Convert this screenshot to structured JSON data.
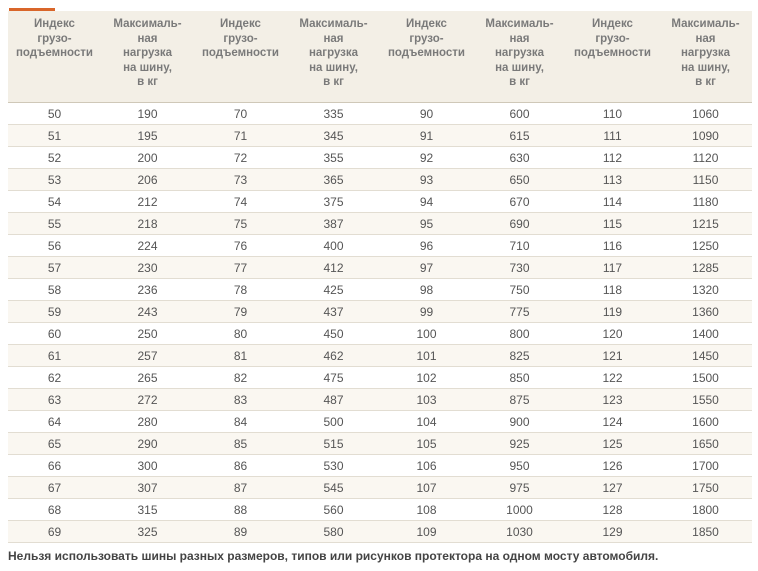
{
  "table": {
    "header": [
      "Индекс\nгрузо-\nподъемности",
      "Максималь-\nная\nнагрузка\nна шину,\nв кг",
      "Индекс\nгрузо-\nподъемности",
      "Максималь-\nная\nнагрузка\nна шину,\nв кг",
      "Индекс\nгрузо-\nподъемности",
      "Максималь-\nная\nнагрузка\nна шину,\nв кг",
      "Индекс\nгрузо-\nподъемности",
      "Максималь-\nная\nнагрузка\nна шину,\nв кг"
    ],
    "rows": [
      [
        50,
        190,
        70,
        335,
        90,
        600,
        110,
        1060
      ],
      [
        51,
        195,
        71,
        345,
        91,
        615,
        111,
        1090
      ],
      [
        52,
        200,
        72,
        355,
        92,
        630,
        112,
        1120
      ],
      [
        53,
        206,
        73,
        365,
        93,
        650,
        113,
        1150
      ],
      [
        54,
        212,
        74,
        375,
        94,
        670,
        114,
        1180
      ],
      [
        55,
        218,
        75,
        387,
        95,
        690,
        115,
        1215
      ],
      [
        56,
        224,
        76,
        400,
        96,
        710,
        116,
        1250
      ],
      [
        57,
        230,
        77,
        412,
        97,
        730,
        117,
        1285
      ],
      [
        58,
        236,
        78,
        425,
        98,
        750,
        118,
        1320
      ],
      [
        59,
        243,
        79,
        437,
        99,
        775,
        119,
        1360
      ],
      [
        60,
        250,
        80,
        450,
        100,
        800,
        120,
        1400
      ],
      [
        61,
        257,
        81,
        462,
        101,
        825,
        121,
        1450
      ],
      [
        62,
        265,
        82,
        475,
        102,
        850,
        122,
        1500
      ],
      [
        63,
        272,
        83,
        487,
        103,
        875,
        123,
        1550
      ],
      [
        64,
        280,
        84,
        500,
        104,
        900,
        124,
        1600
      ],
      [
        65,
        290,
        85,
        515,
        105,
        925,
        125,
        1650
      ],
      [
        66,
        300,
        86,
        530,
        106,
        950,
        126,
        1700
      ],
      [
        67,
        307,
        87,
        545,
        107,
        975,
        127,
        1750
      ],
      [
        68,
        315,
        88,
        560,
        108,
        1000,
        128,
        1800
      ],
      [
        69,
        325,
        89,
        580,
        109,
        1030,
        129,
        1850
      ]
    ]
  },
  "note": "Нельзя использовать шины разных размеров, типов или рисунков протектора на одном мосту автомобиля."
}
